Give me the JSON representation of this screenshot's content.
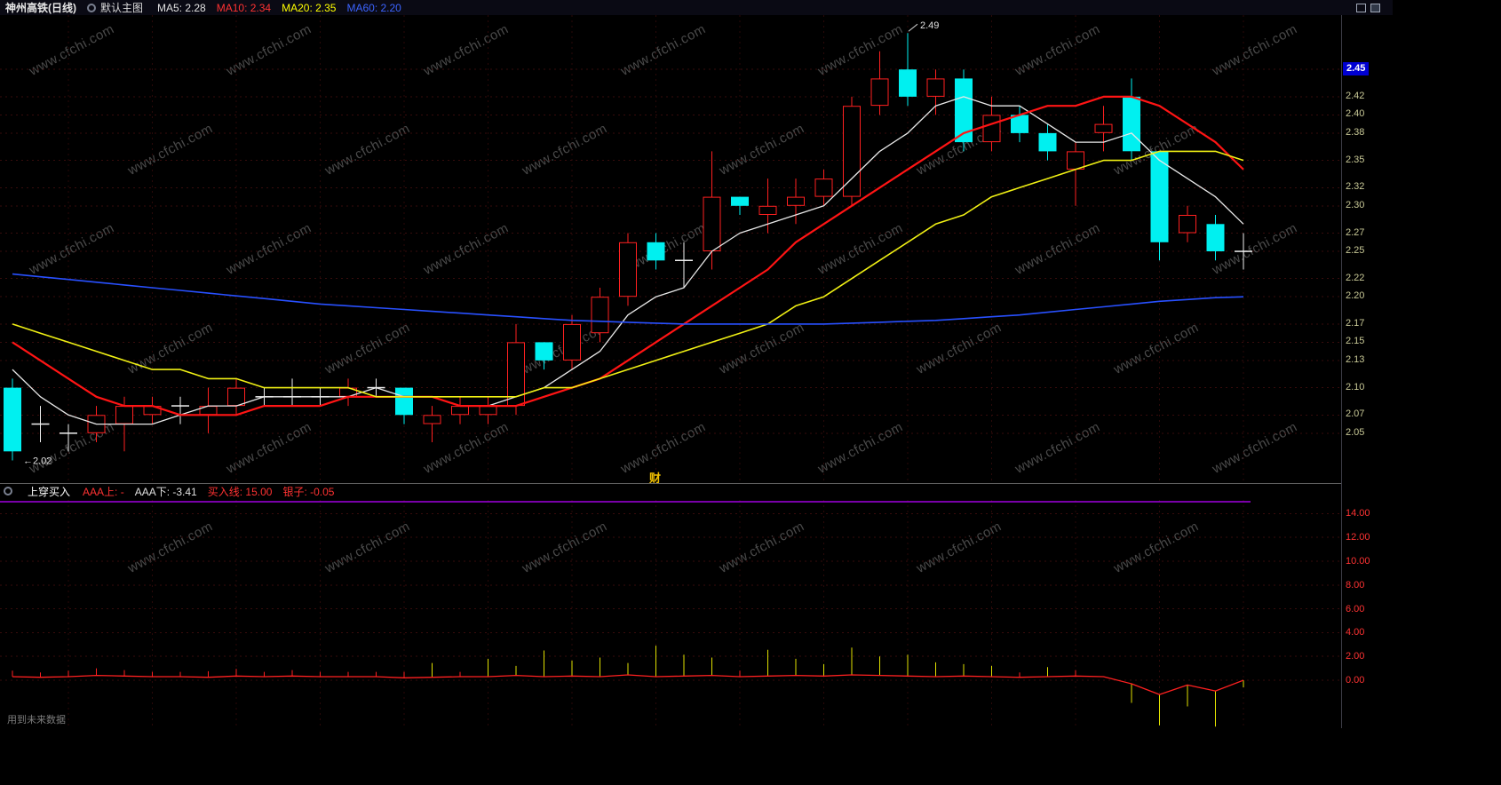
{
  "topbar": {
    "title": "神州高铁(日线)",
    "mode_label": "默认主图",
    "ma_legend": [
      {
        "label": "MA5: 2.28",
        "color": "#e0e0e0"
      },
      {
        "label": "MA10: 2.34",
        "color": "#ff3232"
      },
      {
        "label": "MA20: 2.35",
        "color": "#ffff00"
      },
      {
        "label": "MA60: 2.20",
        "color": "#3c64ff"
      }
    ]
  },
  "sub_header": {
    "indicator_name": "上穿买入",
    "fields": [
      {
        "label": "AAA上: -",
        "color": "#ff3232"
      },
      {
        "label": "AAA下: -3.41",
        "color": "#e0e0e0"
      },
      {
        "label": "买入线: 15.00",
        "color": "#ff3232"
      },
      {
        "label": "银子: -0.05",
        "color": "#ff3232"
      }
    ]
  },
  "annotations": {
    "high_label": "2.49",
    "low_label": "←2.02",
    "current_price": "2.45",
    "watermark": "www.cfchi.com",
    "cai_mark": "财",
    "footer_note": "用到未来数据"
  },
  "colors": {
    "up": "#ff2020",
    "down": "#00f0f0",
    "flat": "#f0f0f0",
    "buy_line": "#a000e0",
    "indicator_line": "#ff2020",
    "spike": "#e0e000",
    "current_price_bg": "#0000d2"
  },
  "chart_data": {
    "type": "candlestick",
    "symbol": "神州高铁",
    "period": "日线",
    "price_axis": {
      "min": 2.01,
      "max": 2.5,
      "ticks": [
        2.45,
        2.42,
        2.4,
        2.38,
        2.35,
        2.32,
        2.3,
        2.27,
        2.25,
        2.22,
        2.2,
        2.17,
        2.15,
        2.13,
        2.1,
        2.07,
        2.05
      ]
    },
    "indicator_axis": {
      "min": -4,
      "max": 15,
      "ticks": [
        14,
        12,
        10,
        8,
        6,
        4,
        2,
        0
      ],
      "buy_line": 15.0
    },
    "candles": [
      [
        2.1,
        2.11,
        2.02,
        2.03,
        "c"
      ],
      [
        2.06,
        2.08,
        2.04,
        2.06,
        "w"
      ],
      [
        2.05,
        2.06,
        2.03,
        2.05,
        "w"
      ],
      [
        2.05,
        2.08,
        2.04,
        2.07,
        "r"
      ],
      [
        2.06,
        2.09,
        2.03,
        2.08,
        "r"
      ],
      [
        2.07,
        2.09,
        2.06,
        2.08,
        "r"
      ],
      [
        2.08,
        2.09,
        2.06,
        2.08,
        "w"
      ],
      [
        2.07,
        2.1,
        2.05,
        2.08,
        "r"
      ],
      [
        2.08,
        2.11,
        2.07,
        2.1,
        "r"
      ],
      [
        2.09,
        2.1,
        2.08,
        2.09,
        "w"
      ],
      [
        2.09,
        2.11,
        2.08,
        2.09,
        "w"
      ],
      [
        2.09,
        2.1,
        2.08,
        2.09,
        "w"
      ],
      [
        2.09,
        2.11,
        2.08,
        2.1,
        "r"
      ],
      [
        2.1,
        2.11,
        2.09,
        2.1,
        "w"
      ],
      [
        2.1,
        2.1,
        2.06,
        2.07,
        "c"
      ],
      [
        2.06,
        2.08,
        2.04,
        2.07,
        "r"
      ],
      [
        2.07,
        2.09,
        2.06,
        2.08,
        "r"
      ],
      [
        2.07,
        2.09,
        2.06,
        2.08,
        "r"
      ],
      [
        2.08,
        2.17,
        2.07,
        2.15,
        "r"
      ],
      [
        2.15,
        2.15,
        2.12,
        2.13,
        "c"
      ],
      [
        2.13,
        2.18,
        2.12,
        2.17,
        "r"
      ],
      [
        2.16,
        2.21,
        2.15,
        2.2,
        "r"
      ],
      [
        2.2,
        2.27,
        2.19,
        2.26,
        "r"
      ],
      [
        2.26,
        2.27,
        2.23,
        2.24,
        "c"
      ],
      [
        2.24,
        2.26,
        2.21,
        2.24,
        "w"
      ],
      [
        2.25,
        2.36,
        2.23,
        2.31,
        "r"
      ],
      [
        2.31,
        2.31,
        2.29,
        2.3,
        "c"
      ],
      [
        2.29,
        2.33,
        2.27,
        2.3,
        "r"
      ],
      [
        2.3,
        2.33,
        2.28,
        2.31,
        "r"
      ],
      [
        2.31,
        2.34,
        2.3,
        2.33,
        "r"
      ],
      [
        2.31,
        2.42,
        2.3,
        2.41,
        "r"
      ],
      [
        2.41,
        2.47,
        2.4,
        2.44,
        "r"
      ],
      [
        2.45,
        2.49,
        2.41,
        2.42,
        "c"
      ],
      [
        2.42,
        2.45,
        2.4,
        2.44,
        "r"
      ],
      [
        2.44,
        2.45,
        2.36,
        2.37,
        "c"
      ],
      [
        2.37,
        2.42,
        2.36,
        2.4,
        "r"
      ],
      [
        2.4,
        2.41,
        2.37,
        2.38,
        "c"
      ],
      [
        2.38,
        2.39,
        2.35,
        2.36,
        "c"
      ],
      [
        2.34,
        2.37,
        2.3,
        2.36,
        "r"
      ],
      [
        2.38,
        2.41,
        2.36,
        2.39,
        "r"
      ],
      [
        2.42,
        2.44,
        2.35,
        2.36,
        "c"
      ],
      [
        2.36,
        2.36,
        2.24,
        2.26,
        "c"
      ],
      [
        2.27,
        2.3,
        2.26,
        2.29,
        "r"
      ],
      [
        2.28,
        2.29,
        2.24,
        2.25,
        "c"
      ],
      [
        2.25,
        2.27,
        2.23,
        2.25,
        "w"
      ]
    ],
    "ma": {
      "ma5": [
        2.12,
        2.09,
        2.07,
        2.06,
        2.06,
        2.06,
        2.07,
        2.08,
        2.08,
        2.09,
        2.09,
        2.09,
        2.09,
        2.1,
        2.09,
        2.09,
        2.08,
        2.08,
        2.09,
        2.1,
        2.12,
        2.14,
        2.18,
        2.2,
        2.21,
        2.25,
        2.27,
        2.28,
        2.29,
        2.3,
        2.33,
        2.36,
        2.38,
        2.41,
        2.42,
        2.41,
        2.41,
        2.39,
        2.37,
        2.37,
        2.38,
        2.35,
        2.33,
        2.31,
        2.28
      ],
      "ma10": [
        2.15,
        2.13,
        2.11,
        2.09,
        2.08,
        2.08,
        2.07,
        2.07,
        2.07,
        2.08,
        2.08,
        2.08,
        2.09,
        2.09,
        2.09,
        2.09,
        2.08,
        2.08,
        2.08,
        2.09,
        2.1,
        2.11,
        2.13,
        2.15,
        2.17,
        2.19,
        2.21,
        2.23,
        2.26,
        2.28,
        2.3,
        2.32,
        2.34,
        2.36,
        2.38,
        2.39,
        2.4,
        2.41,
        2.41,
        2.42,
        2.42,
        2.41,
        2.39,
        2.37,
        2.34
      ],
      "ma20": [
        2.17,
        2.16,
        2.15,
        2.14,
        2.13,
        2.12,
        2.12,
        2.11,
        2.11,
        2.1,
        2.1,
        2.1,
        2.1,
        2.09,
        2.09,
        2.09,
        2.09,
        2.09,
        2.09,
        2.1,
        2.1,
        2.11,
        2.12,
        2.13,
        2.14,
        2.15,
        2.16,
        2.17,
        2.19,
        2.2,
        2.22,
        2.24,
        2.26,
        2.28,
        2.29,
        2.31,
        2.32,
        2.33,
        2.34,
        2.35,
        2.35,
        2.36,
        2.36,
        2.36,
        2.35
      ],
      "ma60": [
        2.225,
        2.222,
        2.219,
        2.216,
        2.213,
        2.21,
        2.207,
        2.204,
        2.201,
        2.198,
        2.195,
        2.192,
        2.19,
        2.188,
        2.186,
        2.184,
        2.182,
        2.18,
        2.178,
        2.176,
        2.174,
        2.173,
        2.172,
        2.171,
        2.17,
        2.17,
        2.17,
        2.17,
        2.17,
        2.17,
        2.171,
        2.172,
        2.173,
        2.174,
        2.176,
        2.178,
        2.18,
        2.183,
        2.186,
        2.189,
        2.192,
        2.195,
        2.197,
        2.199,
        2.2
      ]
    },
    "indicator": {
      "name": "上穿买入",
      "line": [
        0.3,
        0.25,
        0.3,
        0.4,
        0.35,
        0.3,
        0.3,
        0.25,
        0.35,
        0.3,
        0.35,
        0.3,
        0.3,
        0.3,
        0.2,
        0.25,
        0.3,
        0.3,
        0.4,
        0.3,
        0.35,
        0.3,
        0.45,
        0.3,
        0.35,
        0.4,
        0.3,
        0.35,
        0.4,
        0.35,
        0.45,
        0.4,
        0.35,
        0.3,
        0.35,
        0.3,
        0.25,
        0.3,
        0.35,
        0.3,
        -0.3,
        -1.2,
        -0.4,
        -0.9,
        0.0
      ],
      "yellow_spikes": [
        0,
        0,
        0,
        0,
        0,
        0,
        0,
        0,
        0,
        0,
        0,
        0,
        0,
        0,
        0,
        1.2,
        0,
        1.5,
        0.8,
        2.2,
        1.3,
        1.6,
        1.0,
        2.6,
        1.8,
        1.5,
        0,
        2.2,
        1.4,
        1.0,
        2.3,
        1.6,
        1.8,
        1.2,
        1.0,
        0.9,
        0,
        0.8,
        0,
        0,
        -1.6,
        -2.6,
        -1.8,
        -3.0,
        -0.6
      ],
      "red_ticks": [
        0.5,
        0.4,
        0.5,
        0.6,
        0.5,
        0.4,
        0.4,
        0.5,
        0.6,
        0.4,
        0.5,
        0.4,
        0.4,
        0.4,
        0.5,
        0,
        0.4,
        0,
        0.6,
        0,
        0.5,
        0,
        0.6,
        0,
        0,
        0,
        0.5,
        0,
        0,
        0,
        0,
        0,
        0,
        0,
        0,
        0,
        0.4,
        0,
        0.5,
        0,
        0,
        0,
        0,
        0,
        0
      ]
    }
  }
}
